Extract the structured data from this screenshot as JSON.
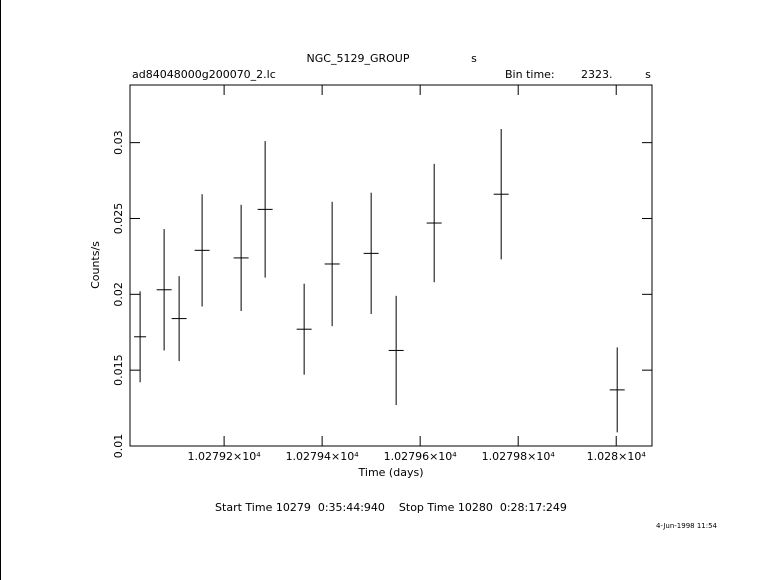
{
  "chart_data": {
    "type": "errorbar",
    "title": "NGC_5129_GROUP",
    "title_unit": "s",
    "file_label": "ad84048000g200070_2.lc",
    "bin_time_label": "Bin time:",
    "bin_time": "2323.",
    "bin_time_unit": "s",
    "x_label": "Time (days)",
    "y_label": "Counts/s",
    "footer": "Start Time 10279  0:35:44:940    Stop Time 10280  0:28:17:249",
    "date": "4-Jun-1998 11:54",
    "color": "#000000",
    "x": [
      10279.0286,
      10279.0776,
      10279.1082,
      10279.1551,
      10279.2347,
      10279.2837,
      10279.3633,
      10279.4204,
      10279.5,
      10279.551,
      10279.6286,
      10279.7653,
      10280.002
    ],
    "values": [
      0.0172,
      0.0203,
      0.0184,
      0.0229,
      0.0224,
      0.0256,
      0.0177,
      0.022,
      0.0227,
      0.0163,
      0.0247,
      0.0266,
      0.0137
    ],
    "yerr": [
      0.003,
      0.004,
      0.0028,
      0.0037,
      0.0035,
      0.0045,
      0.003,
      0.0041,
      0.004,
      0.0036,
      0.0039,
      0.0043,
      0.0028
    ],
    "xerr": [
      0.0123,
      0.0153,
      0.0153,
      0.0153,
      0.0153,
      0.0153,
      0.0153,
      0.0153,
      0.0153,
      0.0153,
      0.0153,
      0.0153,
      0.0153
    ],
    "xlim": [
      10279.008,
      10280.073
    ],
    "ylim": [
      0.01,
      0.0338
    ],
    "xticks": [
      {
        "value": 10279.2,
        "label": "1.02792×10⁴"
      },
      {
        "value": 10279.4,
        "label": "1.02794×10⁴"
      },
      {
        "value": 10279.6,
        "label": "1.02796×10⁴"
      },
      {
        "value": 10279.8,
        "label": "1.02798×10⁴"
      },
      {
        "value": 10280,
        "label": "1.028×10⁴"
      }
    ],
    "yticks": [
      0.01,
      0.015,
      0.02,
      0.025,
      0.03
    ]
  }
}
